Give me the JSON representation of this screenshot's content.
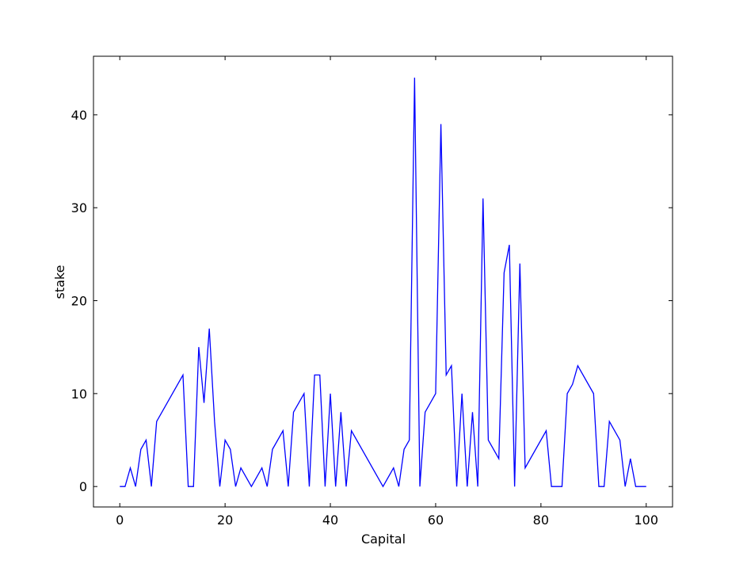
{
  "chart_data": {
    "type": "line",
    "title": "",
    "xlabel": "Capital",
    "ylabel": "stake",
    "xlim": [
      -5,
      105
    ],
    "ylim": [
      -2.2,
      46.3
    ],
    "xticks": [
      0,
      20,
      40,
      60,
      80,
      100
    ],
    "yticks": [
      0,
      10,
      20,
      30,
      40
    ],
    "grid": false,
    "series": [
      {
        "name": "",
        "color": "#0000ff",
        "x": [
          0,
          1,
          2,
          3,
          4,
          5,
          6,
          7,
          12,
          13,
          14,
          15,
          16,
          17,
          18,
          19,
          20,
          21,
          22,
          23,
          25,
          27,
          28,
          29,
          31,
          32,
          33,
          35,
          36,
          37,
          38,
          39,
          40,
          41,
          42,
          43,
          44,
          50,
          52,
          53,
          54,
          55,
          56,
          57,
          58,
          60,
          61,
          62,
          63,
          64,
          65,
          66,
          67,
          68,
          69,
          70,
          72,
          73,
          74,
          75,
          76,
          77,
          81,
          82,
          84,
          85,
          86,
          87,
          90,
          91,
          92,
          93,
          95,
          96,
          97,
          98,
          100
        ],
        "y": [
          0,
          0,
          2,
          0,
          4,
          5,
          0,
          7,
          12,
          0,
          0,
          15,
          9,
          17,
          7,
          0,
          5,
          4,
          0,
          2,
          0,
          2,
          0,
          4,
          6,
          0,
          8,
          10,
          0,
          12,
          12,
          0,
          10,
          0,
          8,
          0,
          6,
          0,
          2,
          0,
          4,
          5,
          44,
          0,
          8,
          10,
          39,
          12,
          13,
          0,
          10,
          0,
          8,
          0,
          31,
          5,
          3,
          23,
          26,
          0,
          24,
          2,
          6,
          0,
          0,
          10,
          11,
          13,
          10,
          0,
          0,
          7,
          5,
          0,
          3,
          0,
          0
        ]
      }
    ]
  }
}
